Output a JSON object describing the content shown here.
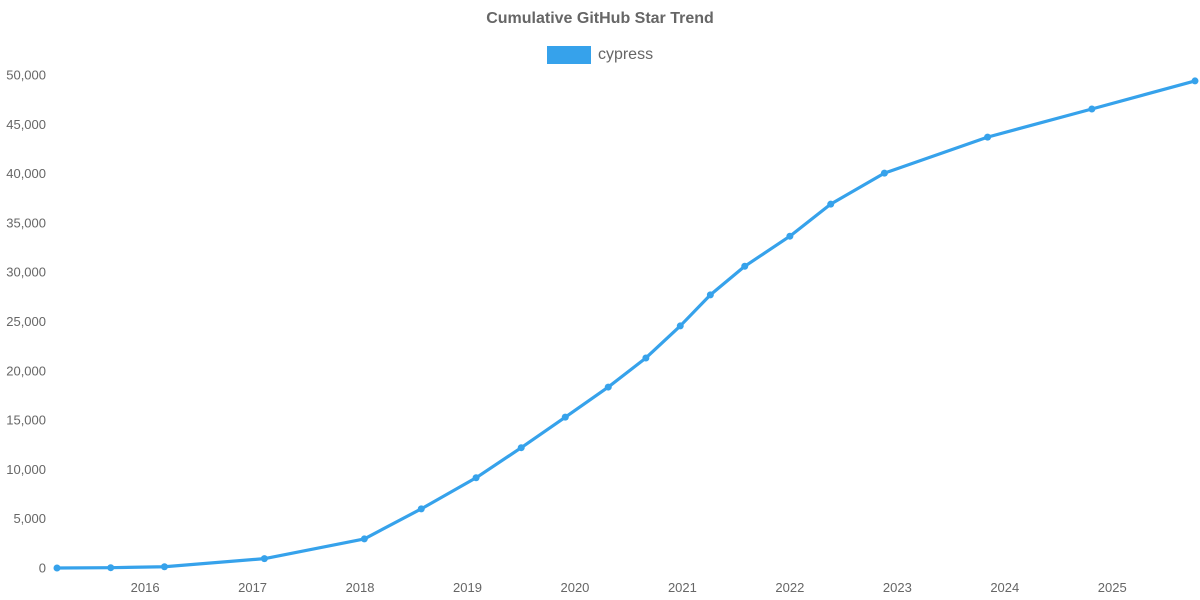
{
  "chart_data": {
    "type": "line",
    "title": "Cumulative GitHub Star Trend",
    "xlabel": "",
    "ylabel": "",
    "xlim": [
      2015.18,
      2025.77
    ],
    "ylim": [
      0,
      50000
    ],
    "x_ticks": [
      2016,
      2017,
      2018,
      2019,
      2020,
      2021,
      2022,
      2023,
      2024,
      2025
    ],
    "y_ticks": [
      0,
      5000,
      10000,
      15000,
      20000,
      25000,
      30000,
      35000,
      40000,
      45000,
      50000
    ],
    "grid": false,
    "axis_lines": false,
    "legend_position": "top",
    "tick_color": "#666666",
    "title_color": "#666666",
    "background_color": "#ffffff",
    "series": [
      {
        "name": "cypress",
        "color": "#36a2eb",
        "line_width": 3.2,
        "marker": "circle",
        "marker_radius": 3.5,
        "points": [
          [
            2015.18,
            0
          ],
          [
            2015.68,
            30
          ],
          [
            2016.18,
            130
          ],
          [
            2017.11,
            950
          ],
          [
            2018.04,
            2950
          ],
          [
            2018.57,
            6000
          ],
          [
            2019.08,
            9150
          ],
          [
            2019.5,
            12200
          ],
          [
            2019.91,
            15300
          ],
          [
            2020.31,
            18350
          ],
          [
            2020.66,
            21300
          ],
          [
            2020.98,
            24550
          ],
          [
            2021.26,
            27700
          ],
          [
            2021.58,
            30600
          ],
          [
            2022.0,
            33650
          ],
          [
            2022.38,
            36900
          ],
          [
            2022.88,
            40050
          ],
          [
            2023.84,
            43700
          ],
          [
            2024.81,
            46550
          ],
          [
            2025.77,
            49400
          ]
        ]
      }
    ]
  }
}
